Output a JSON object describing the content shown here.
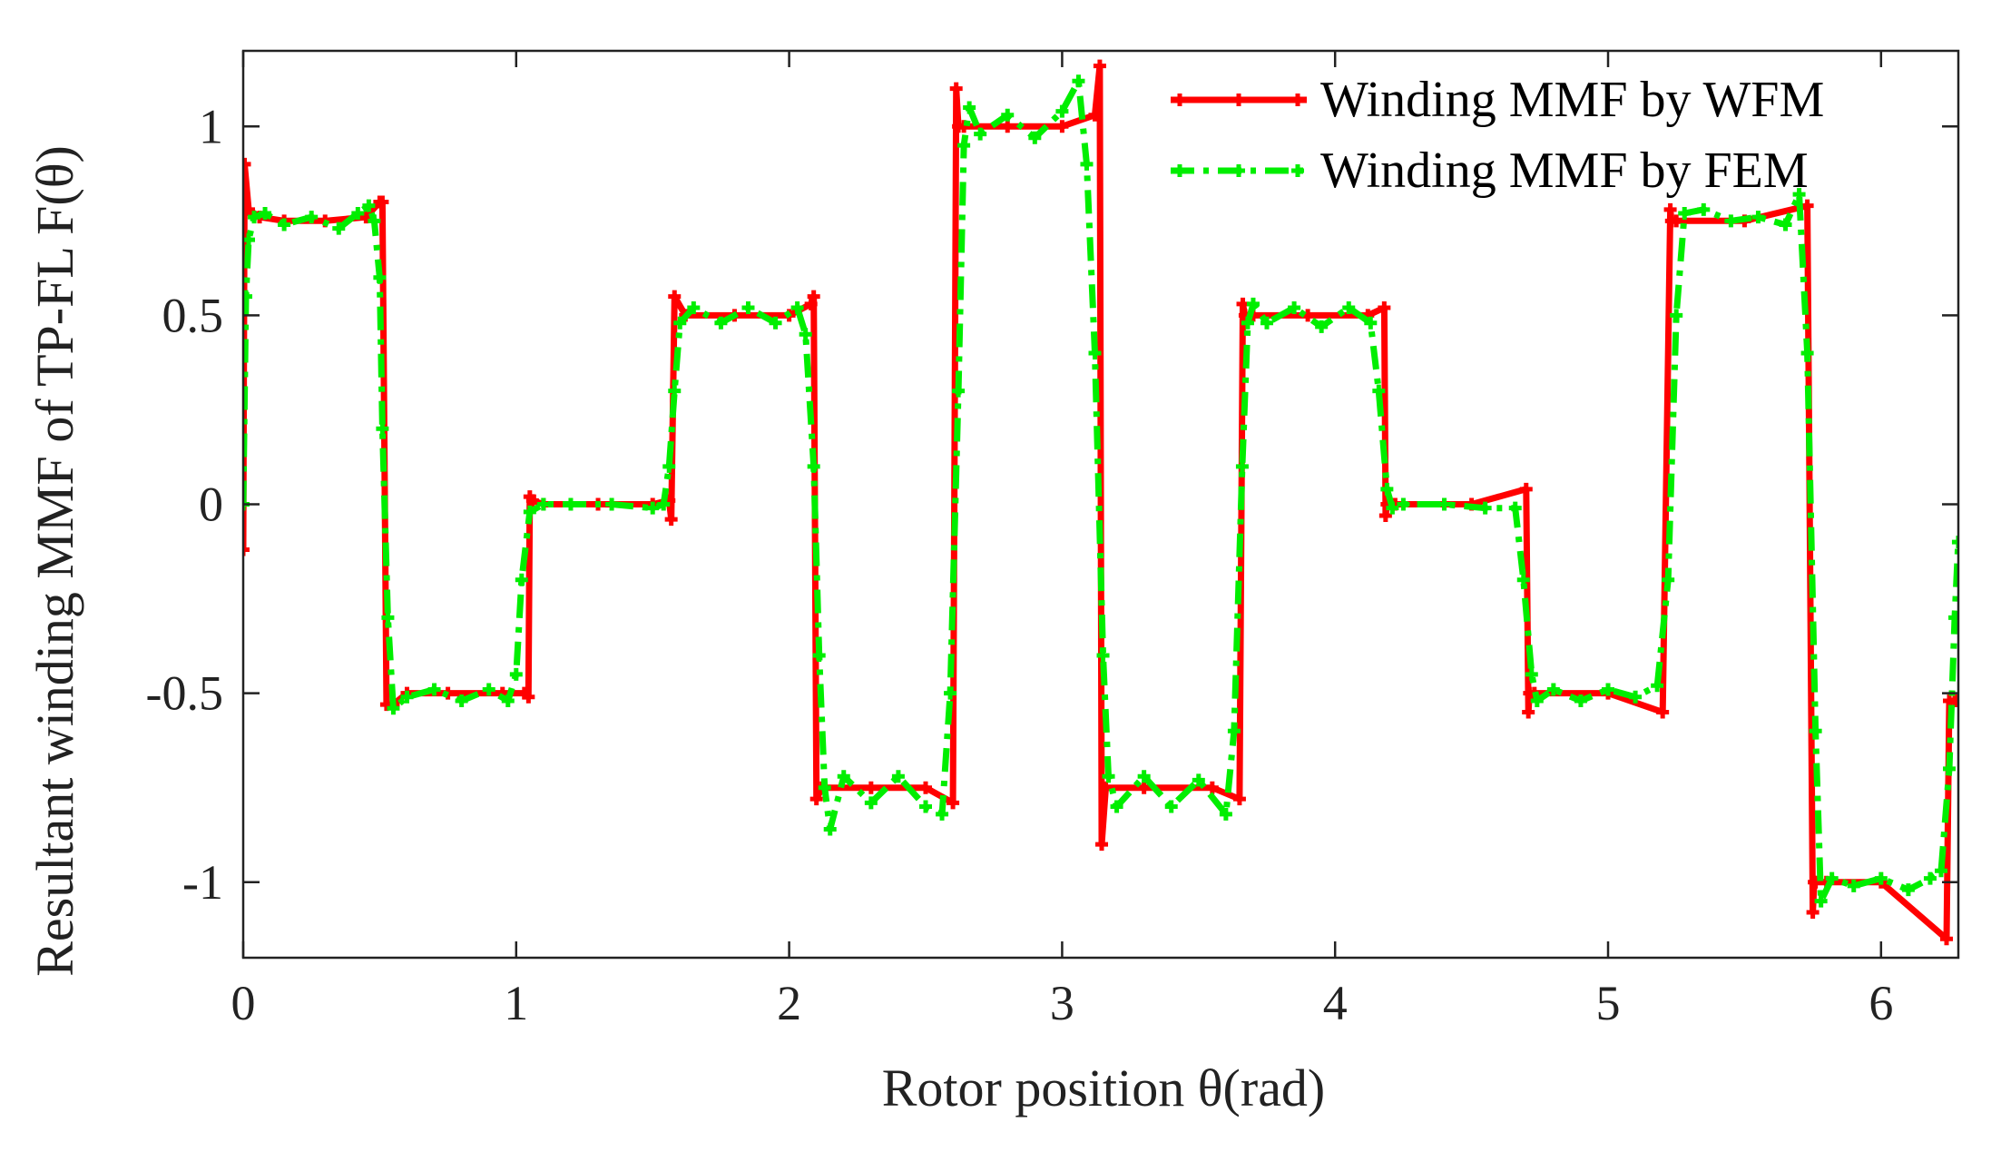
{
  "chart_data": {
    "type": "line",
    "xlabel": "Rotor position θ(rad)",
    "ylabel": "Resultant winding MMF of TP-FL F(θ)",
    "xlim": [
      0,
      6.2832
    ],
    "ylim": [
      -1.2,
      1.2
    ],
    "x_ticks": [
      0,
      1,
      2,
      3,
      4,
      5,
      6
    ],
    "x_tick_labels": [
      "0",
      "1",
      "2",
      "3",
      "4",
      "5",
      "6"
    ],
    "y_ticks": [
      1,
      0.5,
      0,
      -0.5,
      -1
    ],
    "y_tick_labels": [
      "1",
      "0.5",
      "0",
      "-0.5",
      "-1"
    ],
    "grid": false,
    "legend_position": "top-right",
    "series": [
      {
        "name": "Winding MMF by WFM",
        "color": "#ff0000",
        "style": "solid",
        "marker": "plus",
        "x": [
          0,
          0.005,
          0.02,
          0.06,
          0.15,
          0.3,
          0.45,
          0.5,
          0.51,
          0.525,
          0.55,
          0.6,
          0.75,
          0.95,
          1.03,
          1.045,
          1.05,
          1.06,
          1.1,
          1.3,
          1.5,
          1.56,
          1.568,
          1.58,
          1.62,
          1.8,
          2.0,
          2.08,
          2.09,
          2.1,
          2.12,
          2.3,
          2.5,
          2.6,
          2.612,
          2.62,
          2.64,
          2.8,
          3.0,
          3.12,
          3.138,
          3.145,
          3.16,
          3.3,
          3.55,
          3.65,
          3.662,
          3.67,
          3.7,
          3.9,
          4.12,
          4.18,
          4.185,
          4.19,
          4.22,
          4.5,
          4.7,
          4.708,
          4.712,
          4.73,
          5.0,
          5.2,
          5.228,
          5.232,
          5.25,
          5.5,
          5.73,
          5.75,
          5.755,
          5.76,
          5.8,
          6.0,
          6.24,
          6.25,
          6.27,
          6.283
        ],
        "y": [
          -0.12,
          0.9,
          0.78,
          0.76,
          0.75,
          0.75,
          0.76,
          0.8,
          0.8,
          -0.53,
          -0.53,
          -0.5,
          -0.5,
          -0.5,
          -0.5,
          -0.51,
          0.02,
          0.01,
          0,
          0,
          0,
          0.01,
          -0.04,
          0.55,
          0.5,
          0.5,
          0.5,
          0.53,
          0.55,
          -0.78,
          -0.75,
          -0.75,
          -0.75,
          -0.79,
          1.1,
          1.0,
          1.0,
          1.0,
          1.0,
          1.03,
          1.16,
          -0.9,
          -0.75,
          -0.75,
          -0.75,
          -0.78,
          0.53,
          0.5,
          0.5,
          0.5,
          0.5,
          0.52,
          -0.03,
          0,
          0,
          0,
          0.04,
          -0.55,
          -0.5,
          -0.5,
          -0.5,
          -0.55,
          0.78,
          0.75,
          0.75,
          0.75,
          0.79,
          -1.08,
          -1.0,
          -1.0,
          -1.0,
          -1.0,
          -1.15,
          -0.52,
          -0.52,
          -0.52
        ]
      },
      {
        "name": "Winding MMF by FEM",
        "color": "#00ee00",
        "style": "dash-dot",
        "marker": "plus",
        "x": [
          0,
          0.01,
          0.02,
          0.04,
          0.08,
          0.15,
          0.25,
          0.35,
          0.42,
          0.46,
          0.48,
          0.5,
          0.51,
          0.53,
          0.55,
          0.6,
          0.7,
          0.8,
          0.9,
          0.97,
          1.0,
          1.02,
          1.05,
          1.1,
          1.2,
          1.35,
          1.5,
          1.54,
          1.56,
          1.58,
          1.6,
          1.65,
          1.75,
          1.85,
          1.95,
          2.03,
          2.06,
          2.09,
          2.11,
          2.13,
          2.15,
          2.2,
          2.3,
          2.4,
          2.5,
          2.56,
          2.59,
          2.62,
          2.64,
          2.66,
          2.7,
          2.8,
          2.9,
          3.0,
          3.06,
          3.09,
          3.12,
          3.15,
          3.17,
          3.2,
          3.3,
          3.4,
          3.5,
          3.6,
          3.63,
          3.66,
          3.68,
          3.7,
          3.75,
          3.85,
          3.95,
          4.05,
          4.13,
          4.16,
          4.19,
          4.21,
          4.25,
          4.4,
          4.55,
          4.66,
          4.69,
          4.72,
          4.74,
          4.8,
          4.9,
          5.0,
          5.1,
          5.18,
          5.22,
          5.25,
          5.28,
          5.35,
          5.45,
          5.55,
          5.65,
          5.7,
          5.73,
          5.76,
          5.78,
          5.82,
          5.9,
          6.0,
          6.1,
          6.18,
          6.22,
          6.25,
          6.27,
          6.283
        ],
        "y": [
          0,
          0.55,
          0.7,
          0.76,
          0.77,
          0.74,
          0.76,
          0.73,
          0.77,
          0.79,
          0.75,
          0.6,
          0.2,
          -0.3,
          -0.54,
          -0.51,
          -0.49,
          -0.52,
          -0.49,
          -0.52,
          -0.45,
          -0.2,
          -0.02,
          0,
          0,
          0,
          -0.01,
          0.0,
          0.1,
          0.3,
          0.48,
          0.52,
          0.48,
          0.52,
          0.48,
          0.52,
          0.45,
          0.1,
          -0.4,
          -0.75,
          -0.86,
          -0.72,
          -0.79,
          -0.72,
          -0.8,
          -0.82,
          -0.5,
          0.3,
          0.95,
          1.05,
          0.98,
          1.03,
          0.97,
          1.04,
          1.12,
          0.9,
          0.4,
          -0.4,
          -0.72,
          -0.8,
          -0.72,
          -0.8,
          -0.73,
          -0.82,
          -0.6,
          0.1,
          0.48,
          0.53,
          0.48,
          0.52,
          0.47,
          0.52,
          0.48,
          0.3,
          0.04,
          -0.01,
          0,
          0,
          -0.01,
          -0.01,
          -0.2,
          -0.45,
          -0.52,
          -0.49,
          -0.52,
          -0.49,
          -0.51,
          -0.48,
          -0.2,
          0.5,
          0.77,
          0.78,
          0.75,
          0.76,
          0.74,
          0.82,
          0.4,
          -0.6,
          -1.05,
          -0.99,
          -1.01,
          -0.99,
          -1.02,
          -0.99,
          -0.97,
          -0.7,
          -0.3,
          -0.1
        ]
      }
    ]
  }
}
